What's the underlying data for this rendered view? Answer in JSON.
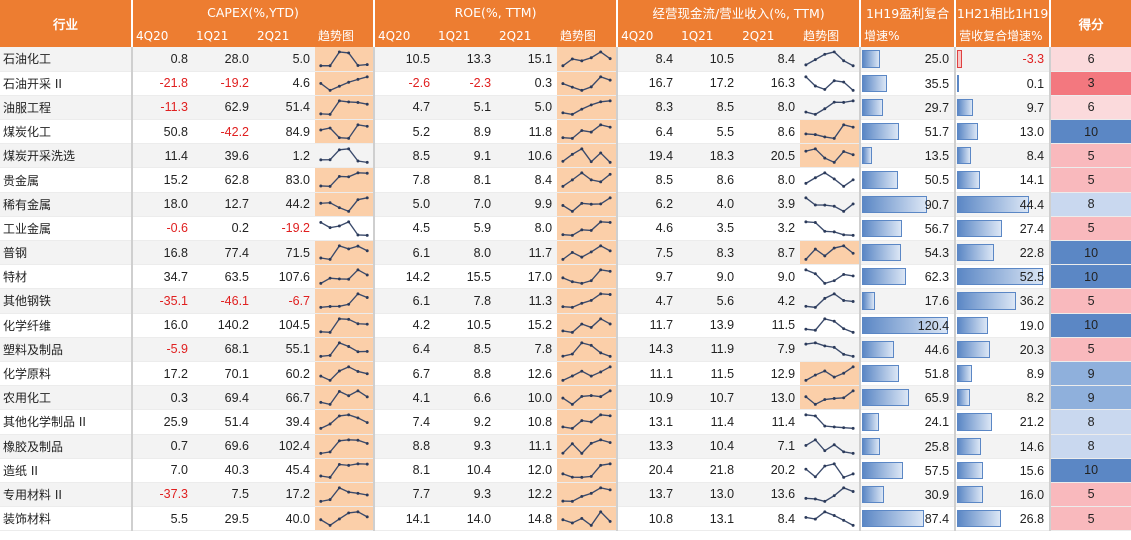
{
  "headers": {
    "industry": "行业",
    "capex": "CAPEX(%,YTD)",
    "roe": "ROE(%, TTM)",
    "cfo": "经营现金流/营业收入(%, TTM)",
    "profit_cagr_1": "1H19盈利复合",
    "profit_cagr_2": "增速%",
    "rev_cagr_1": "1H21相比1H19",
    "rev_cagr_2": "营收复合增速%",
    "score": "得分",
    "periods": [
      "4Q20",
      "1Q21",
      "2Q21"
    ],
    "trend": "趋势图"
  },
  "colors": {
    "header_bg": "#ED7D31",
    "spark_highlight": "#FBCFA9",
    "bar_blue": "#5b87c5",
    "negative": "#e02020",
    "score_10": "#5b87c5",
    "score_9": "#8fb0dc",
    "score_8": "#c9d8ef",
    "score_6": "#fbdadc",
    "score_5": "#f9b9bd",
    "score_3": "#f3787f"
  },
  "rows": [
    {
      "name": "石油化工",
      "capex": [
        0.8,
        28.0,
        5.0
      ],
      "roe": [
        10.5,
        13.3,
        15.1
      ],
      "cfo": [
        8.4,
        10.5,
        8.4
      ],
      "profit": 25.0,
      "rev": -3.3,
      "score": 6
    },
    {
      "name": "石油开采 II",
      "capex": [
        -21.8,
        -19.2,
        4.6
      ],
      "roe": [
        -2.6,
        -2.3,
        0.3
      ],
      "cfo": [
        16.7,
        17.2,
        16.3
      ],
      "profit": 35.5,
      "rev": 0.1,
      "score": 3
    },
    {
      "name": "油服工程",
      "capex": [
        -11.3,
        62.9,
        51.4
      ],
      "roe": [
        4.7,
        5.1,
        5.0
      ],
      "cfo": [
        8.3,
        8.5,
        8.0
      ],
      "profit": 29.7,
      "rev": 9.7,
      "score": 6
    },
    {
      "name": "煤炭化工",
      "capex": [
        50.8,
        -42.2,
        84.9
      ],
      "roe": [
        5.2,
        8.9,
        11.8
      ],
      "cfo": [
        6.4,
        5.5,
        8.6
      ],
      "profit": 51.7,
      "rev": 13.0,
      "score": 10
    },
    {
      "name": "煤炭开采洗选",
      "capex": [
        11.4,
        39.6,
        1.2
      ],
      "roe": [
        8.5,
        9.1,
        10.6
      ],
      "cfo": [
        19.4,
        18.3,
        20.5
      ],
      "profit": 13.5,
      "rev": 8.4,
      "score": 5
    },
    {
      "name": "贵金属",
      "capex": [
        15.2,
        62.8,
        83.0
      ],
      "roe": [
        7.8,
        8.1,
        8.4
      ],
      "cfo": [
        8.5,
        8.6,
        8.0
      ],
      "profit": 50.5,
      "rev": 14.1,
      "score": 5
    },
    {
      "name": "稀有金属",
      "capex": [
        18.0,
        12.7,
        44.2
      ],
      "roe": [
        5.0,
        7.0,
        9.9
      ],
      "cfo": [
        6.2,
        4.0,
        3.9
      ],
      "profit": 90.7,
      "rev": 44.4,
      "score": 8
    },
    {
      "name": "工业金属",
      "capex": [
        -0.6,
        0.2,
        -19.2
      ],
      "roe": [
        4.5,
        5.9,
        8.0
      ],
      "cfo": [
        4.6,
        3.5,
        3.2
      ],
      "profit": 56.7,
      "rev": 27.4,
      "score": 5
    },
    {
      "name": "普钢",
      "capex": [
        16.8,
        77.4,
        71.5
      ],
      "roe": [
        6.1,
        8.0,
        11.7
      ],
      "cfo": [
        7.5,
        8.3,
        8.7
      ],
      "profit": 54.3,
      "rev": 22.8,
      "score": 10
    },
    {
      "name": "特材",
      "capex": [
        34.7,
        63.5,
        107.6
      ],
      "roe": [
        14.2,
        15.5,
        17.0
      ],
      "cfo": [
        9.7,
        9.0,
        9.0
      ],
      "profit": 62.3,
      "rev": 52.5,
      "score": 10
    },
    {
      "name": "其他钢铁",
      "capex": [
        -35.1,
        -46.1,
        -6.7
      ],
      "roe": [
        6.1,
        7.8,
        11.3
      ],
      "cfo": [
        4.7,
        5.6,
        4.2
      ],
      "profit": 17.6,
      "rev": 36.2,
      "score": 5
    },
    {
      "name": "化学纤维",
      "capex": [
        16.0,
        140.2,
        104.5
      ],
      "roe": [
        4.2,
        10.5,
        15.2
      ],
      "cfo": [
        11.7,
        13.9,
        11.5
      ],
      "profit": 120.4,
      "rev": 19.0,
      "score": 10
    },
    {
      "name": "塑料及制品",
      "capex": [
        -5.9,
        68.1,
        55.1
      ],
      "roe": [
        6.4,
        8.5,
        7.8
      ],
      "cfo": [
        14.3,
        11.9,
        7.9
      ],
      "profit": 44.6,
      "rev": 20.3,
      "score": 5
    },
    {
      "name": "化学原料",
      "capex": [
        17.2,
        70.1,
        60.2
      ],
      "roe": [
        6.7,
        8.8,
        12.6
      ],
      "cfo": [
        11.1,
        11.5,
        12.9
      ],
      "profit": 51.8,
      "rev": 8.9,
      "score": 9
    },
    {
      "name": "农用化工",
      "capex": [
        0.3,
        69.4,
        66.7
      ],
      "roe": [
        4.1,
        6.6,
        10.0
      ],
      "cfo": [
        10.9,
        10.7,
        13.0
      ],
      "profit": 65.9,
      "rev": 8.2,
      "score": 9
    },
    {
      "name": "其他化学制品 II",
      "capex": [
        25.9,
        51.4,
        39.4
      ],
      "roe": [
        7.4,
        9.2,
        10.8
      ],
      "cfo": [
        13.1,
        11.4,
        11.4
      ],
      "profit": 24.1,
      "rev": 21.2,
      "score": 8
    },
    {
      "name": "橡胶及制品",
      "capex": [
        0.7,
        69.6,
        102.4
      ],
      "roe": [
        8.8,
        9.3,
        11.1
      ],
      "cfo": [
        13.3,
        10.4,
        7.1
      ],
      "profit": 25.8,
      "rev": 14.6,
      "score": 8
    },
    {
      "name": "造纸 II",
      "capex": [
        7.0,
        40.3,
        45.4
      ],
      "roe": [
        8.1,
        10.4,
        12.0
      ],
      "cfo": [
        20.4,
        21.8,
        20.2
      ],
      "profit": 57.5,
      "rev": 15.6,
      "score": 10
    },
    {
      "name": "专用材料 II",
      "capex": [
        -37.3,
        7.5,
        17.2
      ],
      "roe": [
        7.7,
        9.3,
        12.2
      ],
      "cfo": [
        13.7,
        13.0,
        13.6
      ],
      "profit": 30.9,
      "rev": 16.0,
      "score": 5
    },
    {
      "name": "装饰材料",
      "capex": [
        5.5,
        29.5,
        40.0
      ],
      "roe": [
        14.1,
        14.0,
        14.8
      ],
      "cfo": [
        10.8,
        13.1,
        8.4
      ],
      "profit": 87.4,
      "rev": 26.8,
      "score": 5
    }
  ]
}
